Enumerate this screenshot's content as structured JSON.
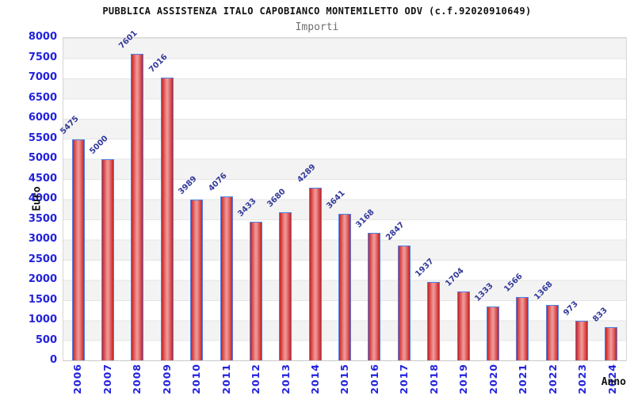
{
  "chart_data": {
    "type": "bar",
    "title": "PUBBLICA ASSISTENZA ITALO CAPOBIANCO MONTEMILETTO ODV (c.f.92020910649)",
    "subtitle": "Importi",
    "xlabel": "Anno",
    "ylabel": "Euro",
    "categories": [
      "2006",
      "2007",
      "2008",
      "2009",
      "2010",
      "2011",
      "2012",
      "2013",
      "2014",
      "2015",
      "2016",
      "2017",
      "2018",
      "2019",
      "2020",
      "2021",
      "2022",
      "2023",
      "2024"
    ],
    "values": [
      5475,
      5000,
      7601,
      7016,
      3989,
      4076,
      3433,
      3680,
      4289,
      3641,
      3168,
      2847,
      1937,
      1704,
      1333,
      1566,
      1368,
      973,
      833
    ],
    "ylim": [
      0,
      8000
    ],
    "ytick_step": 500,
    "grid": "horizontal gridlines with alternating gray/white bands every 500",
    "legend": "none",
    "value_labels": "shown above each bar, rotated 45 degrees",
    "colors": {
      "bar_fill_edge": "#c32222",
      "bar_fill_center": "#ee9595",
      "bar_border": "#4d82e8",
      "axis_tick_label": "#2222dd",
      "value_label": "#333a99",
      "band_gray": "#f3f3f3",
      "grid_line": "#e4e4e4",
      "title": "#111111",
      "subtitle": "#6e6e6e"
    }
  }
}
